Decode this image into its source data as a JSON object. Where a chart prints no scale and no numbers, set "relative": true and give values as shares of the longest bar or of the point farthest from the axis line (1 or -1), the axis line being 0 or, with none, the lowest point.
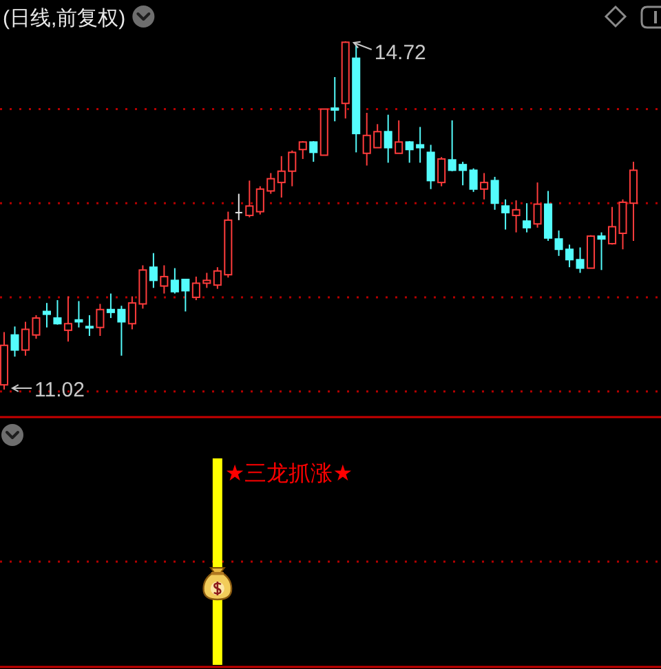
{
  "chart_data": [
    {
      "type": "candlestick",
      "title": "(日线,前复权)",
      "categories": [
        null,
        null,
        null,
        null,
        null,
        null,
        null,
        null,
        null,
        null,
        null,
        null,
        null,
        null,
        null,
        null,
        null,
        null,
        null,
        null,
        null,
        null,
        null,
        null,
        null,
        null,
        null,
        null,
        null,
        null,
        null,
        null,
        null,
        null,
        null,
        null,
        null,
        null,
        null,
        null,
        null,
        null,
        null,
        null,
        null,
        null,
        null,
        null,
        null,
        null,
        null,
        null,
        null,
        null,
        null,
        null,
        null,
        null,
        null,
        null
      ],
      "ohlc": [
        [
          11.07,
          11.63,
          11.02,
          11.49
        ],
        [
          11.6,
          11.69,
          11.37,
          11.44
        ],
        [
          11.44,
          11.74,
          11.38,
          11.66
        ],
        [
          11.6,
          11.81,
          11.56,
          11.78
        ],
        [
          11.85,
          11.94,
          11.68,
          11.82
        ],
        [
          11.78,
          11.97,
          11.71,
          11.72
        ],
        [
          11.65,
          12.01,
          11.53,
          11.72
        ],
        [
          11.76,
          11.96,
          11.68,
          11.74
        ],
        [
          11.69,
          11.81,
          11.59,
          11.68
        ],
        [
          11.68,
          11.93,
          11.59,
          11.87
        ],
        [
          11.87,
          12.04,
          11.78,
          11.84
        ],
        [
          11.87,
          11.91,
          11.38,
          11.74
        ],
        [
          11.72,
          12.01,
          11.66,
          11.94
        ],
        [
          11.93,
          12.34,
          11.88,
          12.29
        ],
        [
          12.32,
          12.47,
          12.1,
          12.18
        ],
        [
          12.12,
          12.34,
          12.04,
          12.22
        ],
        [
          12.18,
          12.31,
          12.04,
          12.06
        ],
        [
          12.19,
          12.19,
          11.85,
          12.07
        ],
        [
          12.0,
          12.22,
          11.97,
          12.15
        ],
        [
          12.15,
          12.26,
          12.1,
          12.18
        ],
        [
          12.13,
          12.32,
          12.09,
          12.28
        ],
        [
          12.24,
          12.91,
          12.21,
          12.82
        ],
        [
          12.9,
          13.1,
          12.82,
          12.9
        ],
        [
          12.87,
          13.24,
          12.85,
          12.97
        ],
        [
          12.91,
          13.18,
          12.88,
          13.15
        ],
        [
          13.13,
          13.32,
          13.1,
          13.26
        ],
        [
          13.22,
          13.5,
          13.06,
          13.34
        ],
        [
          13.34,
          13.56,
          13.18,
          13.54
        ],
        [
          13.57,
          13.66,
          13.47,
          13.65
        ],
        [
          13.65,
          13.66,
          13.44,
          13.54
        ],
        [
          13.51,
          14.0,
          13.51,
          14.0
        ],
        [
          14.01,
          14.34,
          13.87,
          13.99
        ],
        [
          14.06,
          14.72,
          13.9,
          14.71
        ],
        [
          14.54,
          14.68,
          13.54,
          13.74
        ],
        [
          13.53,
          13.96,
          13.4,
          13.72
        ],
        [
          13.59,
          13.84,
          13.59,
          13.76
        ],
        [
          13.76,
          13.94,
          13.43,
          13.59
        ],
        [
          13.53,
          13.88,
          13.53,
          13.65
        ],
        [
          13.65,
          13.66,
          13.43,
          13.57
        ],
        [
          13.62,
          13.81,
          13.43,
          13.59
        ],
        [
          13.54,
          13.62,
          13.15,
          13.24
        ],
        [
          13.22,
          13.49,
          13.18,
          13.47
        ],
        [
          13.46,
          13.88,
          13.34,
          13.35
        ],
        [
          13.41,
          13.44,
          13.19,
          13.35
        ],
        [
          13.35,
          13.37,
          13.12,
          13.15
        ],
        [
          13.15,
          13.32,
          13.04,
          13.22
        ],
        [
          13.24,
          13.28,
          12.93,
          13.0
        ],
        [
          12.97,
          13.04,
          12.72,
          12.9
        ],
        [
          12.87,
          13.03,
          12.69,
          12.93
        ],
        [
          12.81,
          13.0,
          12.69,
          12.74
        ],
        [
          12.78,
          13.22,
          12.74,
          12.99
        ],
        [
          12.99,
          13.13,
          12.6,
          12.63
        ],
        [
          12.62,
          12.71,
          12.44,
          12.51
        ],
        [
          12.51,
          12.56,
          12.32,
          12.4
        ],
        [
          12.4,
          12.53,
          12.26,
          12.31
        ],
        [
          12.31,
          12.66,
          12.31,
          12.65
        ],
        [
          12.65,
          12.69,
          12.29,
          12.62
        ],
        [
          12.57,
          12.96,
          12.56,
          12.75
        ],
        [
          12.68,
          13.04,
          12.51,
          13.01
        ],
        [
          13.0,
          13.44,
          12.6,
          13.35
        ]
      ],
      "yticks": [
        {
          "value": 11,
          "label": null
        },
        {
          "value": 12,
          "label": null
        },
        {
          "value": 13,
          "label": null
        },
        {
          "value": 14,
          "label": null
        }
      ],
      "grid": "y",
      "annotations": [
        "14.72",
        "11.02"
      ]
    },
    {
      "type": "bar",
      "categories": [
        null,
        null,
        null,
        null,
        null,
        null,
        null,
        null,
        null,
        null,
        null,
        null,
        null,
        null,
        null,
        null,
        null,
        null,
        null,
        null,
        null,
        null,
        null,
        null,
        null,
        null,
        null,
        null,
        null,
        null,
        null,
        null,
        null,
        null,
        null,
        null,
        null,
        null,
        null,
        null,
        null,
        null,
        null,
        null,
        null,
        null,
        null,
        null,
        null,
        null,
        null,
        null,
        null,
        null,
        null,
        null,
        null,
        null,
        null,
        null
      ],
      "values": [
        null,
        null,
        null,
        null,
        null,
        null,
        null,
        null,
        null,
        null,
        null,
        null,
        null,
        null,
        null,
        null,
        null,
        null,
        null,
        null,
        1,
        null,
        null,
        null,
        null,
        null,
        null,
        null,
        null,
        null,
        null,
        null,
        null,
        null,
        null,
        null,
        null,
        null,
        null,
        null,
        null,
        null,
        null,
        null,
        null,
        null,
        null,
        null,
        null,
        null,
        null,
        null,
        null,
        null,
        null,
        null,
        null,
        null,
        null,
        null
      ],
      "color": "#ffff00",
      "relative": true,
      "ref_lines": [
        {
          "axis": "y",
          "value": 0.5,
          "color": "#b40000",
          "line_style": "dotted"
        }
      ],
      "annotations": [
        "★三龙抓涨★"
      ]
    }
  ]
}
